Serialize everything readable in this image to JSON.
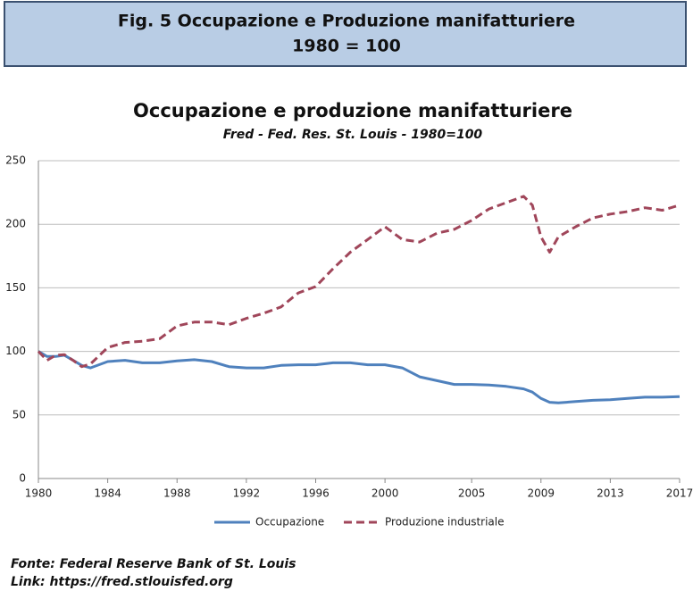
{
  "header": {
    "lines": [
      "Fig. 5 Occupazione e Produzione manifatturiere",
      "1980 = 100"
    ]
  },
  "chart_data": {
    "type": "line",
    "title": "Occupazione e produzione manifatturiere",
    "subtitle": "Fred - Fed. Res. St. Louis - 1980=100",
    "x": [
      1980,
      1980.5,
      1981,
      1981.5,
      1982,
      1982.5,
      1983,
      1984,
      1985,
      1986,
      1987,
      1988,
      1989,
      1990,
      1991,
      1992,
      1993,
      1994,
      1995,
      1996,
      1997,
      1998,
      1999,
      2000,
      2001,
      2002,
      2003,
      2004,
      2005,
      2006,
      2007,
      2008,
      2008.5,
      2009,
      2009.5,
      2010,
      2011,
      2012,
      2013,
      2014,
      2015,
      2016,
      2017
    ],
    "series": [
      {
        "name": "Occupazione",
        "color": "#4f81bd",
        "style": "solid",
        "values": [
          100,
          96,
          96,
          97,
          93,
          89,
          87,
          92,
          93,
          91,
          91,
          92.5,
          93.5,
          92,
          88,
          87,
          87,
          89,
          89.5,
          89.5,
          91,
          91,
          89.5,
          89.5,
          87,
          80,
          77,
          74,
          74,
          73.5,
          72.5,
          70.5,
          68,
          63,
          60,
          59.5,
          60.5,
          61.5,
          62,
          63,
          64,
          64,
          64.5
        ]
      },
      {
        "name": "Produzione industriale",
        "color": "#a0465a",
        "style": "dashed",
        "values": [
          100,
          93,
          97,
          97.5,
          93,
          88,
          90,
          103,
          107,
          108,
          110,
          120,
          123,
          123,
          121,
          126,
          130,
          135,
          146,
          151,
          165,
          178,
          188,
          198,
          188,
          186,
          193,
          196,
          203,
          212,
          217,
          222,
          215,
          190,
          178,
          190,
          198,
          205,
          208,
          210,
          213,
          211,
          215
        ]
      }
    ],
    "xlim": [
      1980,
      2017
    ],
    "xticks": [
      1980,
      1984,
      1988,
      1992,
      1996,
      2000,
      2005,
      2009,
      2013,
      2017
    ],
    "ylim": [
      0,
      250
    ],
    "yticks": [
      0,
      50,
      100,
      150,
      200,
      250
    ],
    "grid": true,
    "legend": "bottom"
  },
  "footer": {
    "lines": [
      "Fonte: Federal Reserve Bank of St. Louis",
      "Link: https://fred.stlouisfed.org"
    ]
  }
}
